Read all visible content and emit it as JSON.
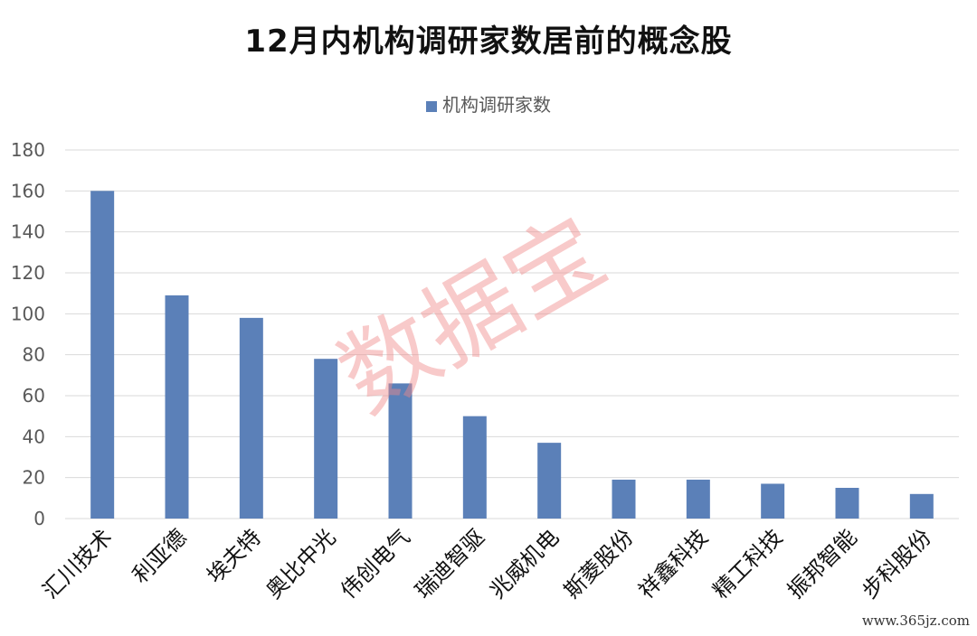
{
  "chart_data": {
    "type": "bar",
    "title": "12月内机构调研家数居前的概念股",
    "series": [
      {
        "name": "机构调研家数",
        "color": "#5b80b8",
        "values": [
          160,
          109,
          98,
          78,
          66,
          50,
          37,
          19,
          19,
          17,
          15,
          12
        ]
      }
    ],
    "categories": [
      "汇川技术",
      "利亚德",
      "埃夫特",
      "奥比中光",
      "伟创电气",
      "瑞迪智驱",
      "兆威机电",
      "斯菱股份",
      "祥鑫科技",
      "精工科技",
      "振邦智能",
      "步科股份"
    ],
    "yticks": [
      "0",
      "20",
      "40",
      "60",
      "80",
      "100",
      "120",
      "140",
      "160",
      "180"
    ],
    "ylim": [
      0,
      180
    ],
    "grid": true,
    "legend_position": "top"
  },
  "watermark": "数据宝",
  "source": "www.365jz.com"
}
